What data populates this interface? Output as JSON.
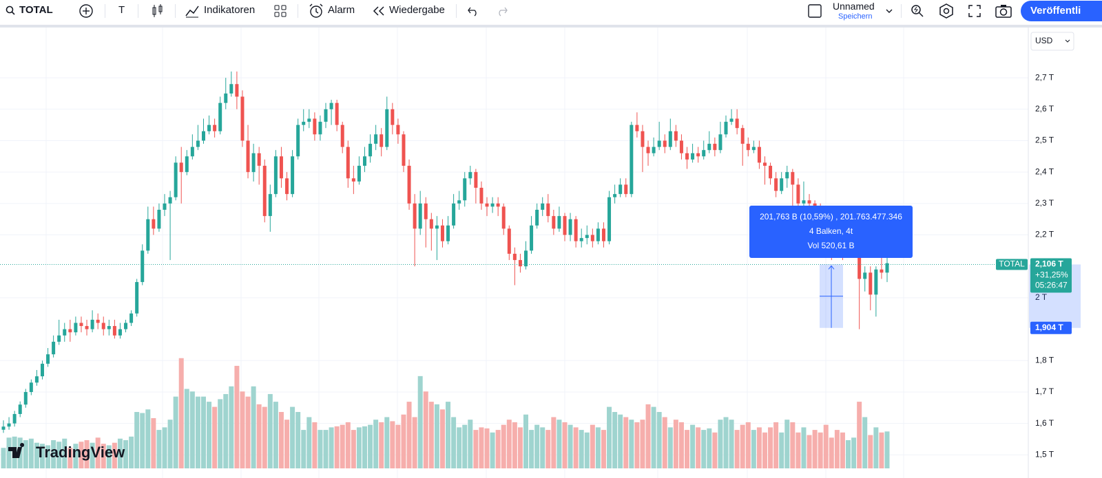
{
  "toolbar": {
    "symbol": "TOTAL",
    "interval": "T",
    "indicators": "Indikatoren",
    "alert": "Alarm",
    "replay": "Wiedergabe",
    "layout_name": "Unnamed",
    "save": "Speichern",
    "publish": "Veröffentli"
  },
  "chart_data": {
    "type": "candlestick",
    "currency": "USD",
    "logo": "TradingView",
    "up_color": "#26a69a",
    "down_color": "#ef5350",
    "up_volume_color": "#9fd4cf",
    "down_volume_color": "#f6aeac",
    "ylim": [
      1.457,
      2.86
    ],
    "yticks": [
      {
        "value": 1.5,
        "label": "1,5 T"
      },
      {
        "value": 1.6,
        "label": "1,6 T"
      },
      {
        "value": 1.7,
        "label": "1,7 T"
      },
      {
        "value": 1.8,
        "label": "1,8 T"
      },
      {
        "value": 2.0,
        "label": "2 T"
      },
      {
        "value": 2.2,
        "label": "2,2 T"
      },
      {
        "value": 2.3,
        "label": "2,3 T"
      },
      {
        "value": 2.4,
        "label": "2,4 T"
      },
      {
        "value": 2.5,
        "label": "2,5 T"
      },
      {
        "value": 2.6,
        "label": "2,6 T"
      },
      {
        "value": 2.7,
        "label": "2,7 T"
      }
    ],
    "grid": true,
    "volume_ylim": [
      0,
      860
    ],
    "ohlc": [
      [
        1.58,
        1.61,
        1.57,
        1.59
      ],
      [
        1.59,
        1.62,
        1.58,
        1.6
      ],
      [
        1.6,
        1.64,
        1.59,
        1.63
      ],
      [
        1.63,
        1.67,
        1.62,
        1.66
      ],
      [
        1.66,
        1.71,
        1.65,
        1.7
      ],
      [
        1.7,
        1.74,
        1.69,
        1.73
      ],
      [
        1.73,
        1.77,
        1.72,
        1.75
      ],
      [
        1.75,
        1.8,
        1.74,
        1.79
      ],
      [
        1.79,
        1.84,
        1.78,
        1.82
      ],
      [
        1.82,
        1.88,
        1.81,
        1.86
      ],
      [
        1.86,
        1.93,
        1.85,
        1.88
      ],
      [
        1.88,
        1.92,
        1.86,
        1.9
      ],
      [
        1.9,
        1.93,
        1.86,
        1.89
      ],
      [
        1.89,
        1.94,
        1.88,
        1.92
      ],
      [
        1.92,
        1.94,
        1.89,
        1.91
      ],
      [
        1.91,
        1.93,
        1.88,
        1.9
      ],
      [
        1.9,
        1.96,
        1.89,
        1.93
      ],
      [
        1.93,
        1.95,
        1.9,
        1.92
      ],
      [
        1.92,
        1.94,
        1.88,
        1.9
      ],
      [
        1.9,
        1.93,
        1.88,
        1.91
      ],
      [
        1.91,
        1.93,
        1.87,
        1.88
      ],
      [
        1.88,
        1.92,
        1.87,
        1.9
      ],
      [
        1.9,
        1.93,
        1.89,
        1.92
      ],
      [
        1.92,
        1.96,
        1.91,
        1.95
      ],
      [
        1.95,
        2.06,
        1.94,
        2.05
      ],
      [
        2.05,
        2.17,
        2.04,
        2.15
      ],
      [
        2.15,
        2.29,
        2.14,
        2.25
      ],
      [
        2.25,
        2.29,
        2.2,
        2.22
      ],
      [
        2.22,
        2.3,
        2.21,
        2.28
      ],
      [
        2.28,
        2.33,
        2.26,
        2.3
      ],
      [
        2.3,
        2.34,
        2.12,
        2.32
      ],
      [
        2.32,
        2.45,
        2.31,
        2.43
      ],
      [
        2.43,
        2.48,
        2.3,
        2.4
      ],
      [
        2.4,
        2.47,
        2.39,
        2.45
      ],
      [
        2.45,
        2.52,
        2.44,
        2.48
      ],
      [
        2.48,
        2.55,
        2.47,
        2.5
      ],
      [
        2.5,
        2.57,
        2.49,
        2.53
      ],
      [
        2.53,
        2.58,
        2.52,
        2.55
      ],
      [
        2.55,
        2.57,
        2.51,
        2.53
      ],
      [
        2.53,
        2.64,
        2.52,
        2.62
      ],
      [
        2.62,
        2.7,
        2.6,
        2.65
      ],
      [
        2.65,
        2.72,
        2.64,
        2.68
      ],
      [
        2.68,
        2.72,
        2.6,
        2.64
      ],
      [
        2.64,
        2.66,
        2.48,
        2.5
      ],
      [
        2.5,
        2.55,
        2.38,
        2.4
      ],
      [
        2.4,
        2.49,
        2.37,
        2.46
      ],
      [
        2.46,
        2.48,
        2.36,
        2.42
      ],
      [
        2.42,
        2.44,
        2.24,
        2.26
      ],
      [
        2.26,
        2.36,
        2.21,
        2.33
      ],
      [
        2.33,
        2.47,
        2.32,
        2.45
      ],
      [
        2.45,
        2.48,
        2.35,
        2.38
      ],
      [
        2.38,
        2.4,
        2.31,
        2.33
      ],
      [
        2.33,
        2.47,
        2.32,
        2.45
      ],
      [
        2.45,
        2.57,
        2.44,
        2.55
      ],
      [
        2.55,
        2.6,
        2.53,
        2.56
      ],
      [
        2.56,
        2.6,
        2.54,
        2.57
      ],
      [
        2.57,
        2.59,
        2.5,
        2.52
      ],
      [
        2.52,
        2.58,
        2.5,
        2.56
      ],
      [
        2.56,
        2.62,
        2.54,
        2.6
      ],
      [
        2.6,
        2.63,
        2.55,
        2.62
      ],
      [
        2.62,
        2.63,
        2.53,
        2.55
      ],
      [
        2.55,
        2.56,
        2.46,
        2.48
      ],
      [
        2.48,
        2.5,
        2.35,
        2.38
      ],
      [
        2.38,
        2.42,
        2.33,
        2.37
      ],
      [
        2.37,
        2.45,
        2.36,
        2.42
      ],
      [
        2.42,
        2.48,
        2.4,
        2.45
      ],
      [
        2.45,
        2.52,
        2.43,
        2.49
      ],
      [
        2.49,
        2.55,
        2.47,
        2.52
      ],
      [
        2.52,
        2.54,
        2.45,
        2.48
      ],
      [
        2.48,
        2.64,
        2.47,
        2.6
      ],
      [
        2.6,
        2.62,
        2.52,
        2.55
      ],
      [
        2.55,
        2.57,
        2.49,
        2.52
      ],
      [
        2.52,
        2.53,
        2.4,
        2.42
      ],
      [
        2.42,
        2.44,
        2.28,
        2.3
      ],
      [
        2.3,
        2.33,
        2.1,
        2.22
      ],
      [
        2.22,
        2.34,
        2.2,
        2.3
      ],
      [
        2.3,
        2.32,
        2.16,
        2.25
      ],
      [
        2.25,
        2.27,
        2.15,
        2.22
      ],
      [
        2.22,
        2.26,
        2.12,
        2.23
      ],
      [
        2.23,
        2.25,
        2.16,
        2.18
      ],
      [
        2.18,
        2.26,
        2.17,
        2.23
      ],
      [
        2.23,
        2.33,
        2.22,
        2.3
      ],
      [
        2.3,
        2.34,
        2.28,
        2.31
      ],
      [
        2.31,
        2.4,
        2.29,
        2.38
      ],
      [
        2.38,
        2.42,
        2.36,
        2.4
      ],
      [
        2.4,
        2.41,
        2.3,
        2.35
      ],
      [
        2.35,
        2.37,
        2.28,
        2.3
      ],
      [
        2.3,
        2.32,
        2.26,
        2.29
      ],
      [
        2.29,
        2.32,
        2.27,
        2.3
      ],
      [
        2.3,
        2.32,
        2.26,
        2.29
      ],
      [
        2.29,
        2.3,
        2.2,
        2.22
      ],
      [
        2.22,
        2.23,
        2.12,
        2.14
      ],
      [
        2.14,
        2.16,
        2.04,
        2.12
      ],
      [
        2.12,
        2.14,
        2.08,
        2.1
      ],
      [
        2.1,
        2.18,
        2.09,
        2.15
      ],
      [
        2.15,
        2.26,
        2.14,
        2.23
      ],
      [
        2.23,
        2.3,
        2.22,
        2.28
      ],
      [
        2.28,
        2.32,
        2.26,
        2.3
      ],
      [
        2.3,
        2.33,
        2.24,
        2.26
      ],
      [
        2.26,
        2.28,
        2.2,
        2.22
      ],
      [
        2.22,
        2.29,
        2.21,
        2.26
      ],
      [
        2.26,
        2.27,
        2.18,
        2.2
      ],
      [
        2.2,
        2.27,
        2.18,
        2.25
      ],
      [
        2.25,
        2.26,
        2.16,
        2.18
      ],
      [
        2.18,
        2.22,
        2.16,
        2.19
      ],
      [
        2.19,
        2.23,
        2.17,
        2.2
      ],
      [
        2.2,
        2.22,
        2.16,
        2.18
      ],
      [
        2.18,
        2.24,
        2.17,
        2.22
      ],
      [
        2.22,
        2.24,
        2.16,
        2.18
      ],
      [
        2.18,
        2.34,
        2.17,
        2.32
      ],
      [
        2.32,
        2.36,
        2.3,
        2.33
      ],
      [
        2.33,
        2.38,
        2.32,
        2.36
      ],
      [
        2.36,
        2.38,
        2.32,
        2.33
      ],
      [
        2.33,
        2.56,
        2.32,
        2.55
      ],
      [
        2.55,
        2.59,
        2.51,
        2.53
      ],
      [
        2.53,
        2.55,
        2.4,
        2.48
      ],
      [
        2.48,
        2.5,
        2.42,
        2.46
      ],
      [
        2.46,
        2.51,
        2.45,
        2.48
      ],
      [
        2.48,
        2.56,
        2.47,
        2.5
      ],
      [
        2.5,
        2.52,
        2.46,
        2.48
      ],
      [
        2.48,
        2.57,
        2.47,
        2.53
      ],
      [
        2.53,
        2.55,
        2.48,
        2.5
      ],
      [
        2.5,
        2.52,
        2.44,
        2.46
      ],
      [
        2.46,
        2.48,
        2.41,
        2.44
      ],
      [
        2.44,
        2.49,
        2.43,
        2.46
      ],
      [
        2.46,
        2.48,
        2.43,
        2.45
      ],
      [
        2.45,
        2.5,
        2.44,
        2.47
      ],
      [
        2.47,
        2.53,
        2.46,
        2.49
      ],
      [
        2.49,
        2.51,
        2.45,
        2.47
      ],
      [
        2.47,
        2.56,
        2.46,
        2.52
      ],
      [
        2.52,
        2.58,
        2.51,
        2.56
      ],
      [
        2.56,
        2.6,
        2.55,
        2.57
      ],
      [
        2.57,
        2.6,
        2.52,
        2.54
      ],
      [
        2.54,
        2.55,
        2.42,
        2.49
      ],
      [
        2.49,
        2.51,
        2.45,
        2.47
      ],
      [
        2.47,
        2.5,
        2.46,
        2.48
      ],
      [
        2.48,
        2.5,
        2.41,
        2.43
      ],
      [
        2.43,
        2.45,
        2.36,
        2.42
      ],
      [
        2.42,
        2.43,
        2.36,
        2.38
      ],
      [
        2.38,
        2.4,
        2.32,
        2.34
      ],
      [
        2.34,
        2.4,
        2.33,
        2.38
      ],
      [
        2.38,
        2.42,
        2.35,
        2.4
      ],
      [
        2.4,
        2.41,
        2.29,
        2.36
      ],
      [
        2.36,
        2.38,
        2.28,
        2.3
      ],
      [
        2.3,
        2.37,
        2.29,
        2.31
      ],
      [
        2.31,
        2.33,
        2.28,
        2.3
      ],
      [
        2.3,
        2.31,
        2.27,
        2.29
      ],
      [
        2.29,
        2.3,
        2.25,
        2.27
      ],
      [
        2.27,
        2.28,
        2.23,
        2.25
      ],
      [
        2.25,
        2.26,
        2.12,
        2.2
      ],
      [
        2.2,
        2.22,
        2.15,
        2.18
      ],
      [
        2.18,
        2.2,
        2.12,
        2.15
      ],
      [
        2.15,
        2.19,
        2.13,
        2.16
      ],
      [
        2.16,
        2.24,
        2.15,
        2.2
      ],
      [
        2.2,
        2.21,
        1.9,
        2.06
      ],
      [
        2.06,
        2.1,
        2.02,
        2.08
      ],
      [
        2.08,
        2.1,
        1.96,
        2.01
      ],
      [
        2.01,
        2.1,
        1.94,
        2.09
      ],
      [
        2.09,
        2.13,
        2.06,
        2.08
      ],
      [
        2.08,
        2.13,
        2.05,
        2.11
      ]
    ],
    "volume": [
      40,
      60,
      62,
      60,
      55,
      58,
      50,
      48,
      45,
      55,
      52,
      58,
      40,
      48,
      52,
      55,
      50,
      60,
      48,
      45,
      50,
      58,
      55,
      62,
      110,
      108,
      115,
      98,
      75,
      80,
      95,
      140,
      215,
      155,
      150,
      140,
      140,
      130,
      120,
      135,
      145,
      160,
      200,
      150,
      140,
      160,
      125,
      120,
      145,
      130,
      110,
      95,
      120,
      110,
      75,
      100,
      90,
      75,
      75,
      80,
      82,
      85,
      90,
      75,
      80,
      82,
      85,
      95,
      90,
      100,
      92,
      85,
      105,
      130,
      100,
      180,
      150,
      130,
      125,
      115,
      130,
      100,
      80,
      85,
      95,
      75,
      80,
      78,
      70,
      75,
      85,
      95,
      90,
      80,
      105,
      75,
      85,
      80,
      75,
      100,
      95,
      90,
      85,
      80,
      75,
      70,
      85,
      80,
      75,
      120,
      110,
      105,
      100,
      95,
      90,
      95,
      125,
      120,
      110,
      100,
      80,
      95,
      90,
      75,
      85,
      80,
      75,
      78,
      70,
      95,
      100,
      95,
      75,
      85,
      90,
      75,
      80,
      70,
      80,
      90,
      70,
      95,
      90,
      70,
      80,
      65,
      75,
      70,
      85,
      60,
      75,
      70,
      55,
      60,
      130,
      100,
      65,
      80,
      70,
      72
    ],
    "current": {
      "value": 2.106,
      "label": "2,106 T",
      "symbol": "TOTAL",
      "change": "+31,25%",
      "countdown": "05:26:47"
    },
    "measure": {
      "low": {
        "value": 1.904,
        "label": "1,904 T"
      },
      "lines": [
        "201,763 B (10,59%) , 201.763.477.346",
        "4 Balken, 4t",
        "Vol 520,61 B"
      ]
    }
  }
}
